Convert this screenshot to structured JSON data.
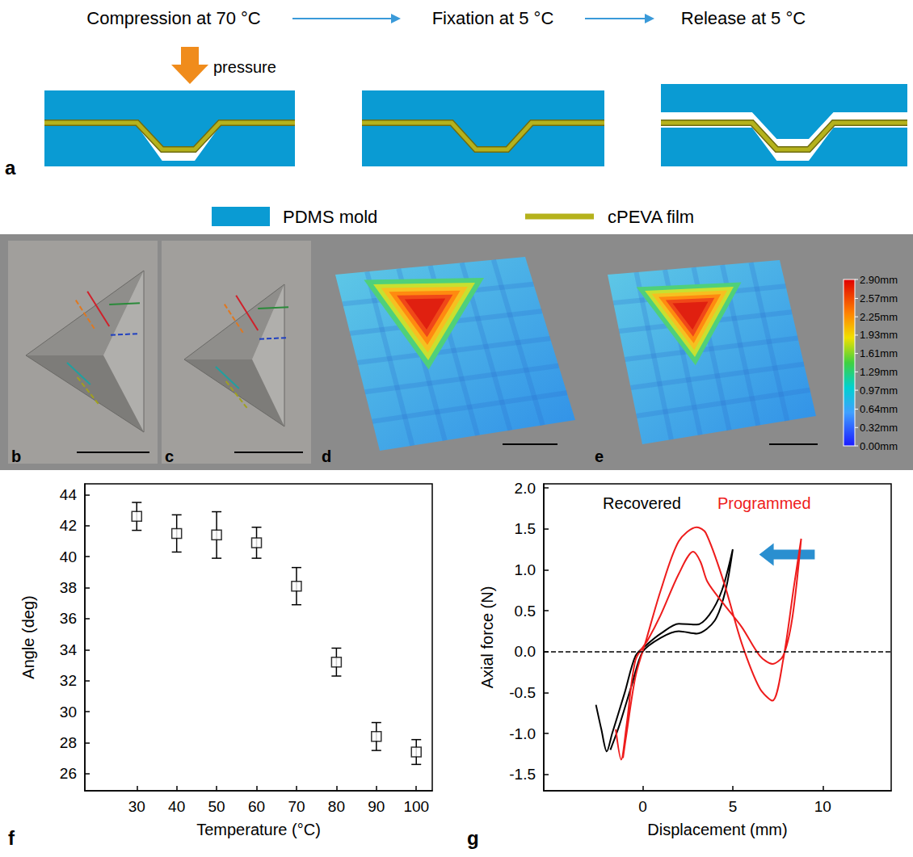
{
  "panel_a": {
    "letter": "a",
    "steps": [
      "Compression at 70 °C",
      "Fixation at 5 °C",
      "Release at 5 °C"
    ],
    "pressure_label": "pressure",
    "legend": [
      {
        "label": "PDMS mold",
        "color": "#0a9bd3"
      },
      {
        "label": "cPEVA film",
        "color": "#b5b21c"
      }
    ]
  },
  "images": [
    {
      "letter": "b",
      "kind": "photo"
    },
    {
      "letter": "c",
      "kind": "photo"
    },
    {
      "letter": "d",
      "kind": "height_map"
    },
    {
      "letter": "e",
      "kind": "height_map"
    }
  ],
  "colorbar": {
    "range": [
      0,
      2.9
    ],
    "ticks": [
      {
        "value": 2.9,
        "label": "2.90mm"
      },
      {
        "value": 2.57,
        "label": "2.57mm"
      },
      {
        "value": 2.25,
        "label": "2.25mm"
      },
      {
        "value": 1.93,
        "label": "1.93mm"
      },
      {
        "value": 1.61,
        "label": "1.61mm"
      },
      {
        "value": 1.29,
        "label": "1.29mm"
      },
      {
        "value": 0.97,
        "label": "0.97mm"
      },
      {
        "value": 0.64,
        "label": "0.64mm"
      },
      {
        "value": 0.32,
        "label": "0.32mm"
      },
      {
        "value": 0,
        "label": "0.00mm"
      }
    ]
  },
  "chart_data": [
    {
      "panel_label": "f",
      "type": "scatter",
      "x_label": "Temperature (°C)",
      "y_label": "Angle (deg)",
      "x": [
        30,
        40,
        50,
        60,
        70,
        80,
        90,
        100
      ],
      "values": [
        42.6,
        41.5,
        41.4,
        40.9,
        38.1,
        33.2,
        28.4,
        27.4
      ],
      "errors": [
        0.9,
        1.2,
        1.5,
        1.0,
        1.2,
        0.9,
        0.9,
        0.8
      ],
      "color": "#000000",
      "marker": "open_square",
      "xlim": [
        17,
        104
      ],
      "ylim": [
        24.9,
        44.7
      ],
      "xticks": [
        30,
        40,
        50,
        60,
        70,
        80,
        90,
        100
      ],
      "yticks": [
        26,
        28,
        30,
        32,
        34,
        36,
        38,
        40,
        42,
        44
      ],
      "grid": false
    },
    {
      "panel_label": "g",
      "type": "line",
      "x_label": "Displacement (mm)",
      "y_label": "Axial force (N)",
      "series": [
        {
          "name": "Recovered",
          "color": "#000000",
          "x": [
            -2.6,
            -2.3,
            -2.0,
            -1.7,
            -1.0,
            -0.4,
            0.2,
            1.0,
            2.0,
            3.0,
            3.7,
            4.4,
            5.0,
            4.6,
            4.0,
            3.0,
            2.0,
            1.0,
            0.0,
            -0.6,
            -1.3,
            -1.8
          ],
          "values": [
            -0.65,
            -0.95,
            -1.22,
            -1.0,
            -0.5,
            -0.05,
            0.08,
            0.22,
            0.34,
            0.33,
            0.45,
            0.75,
            1.25,
            0.75,
            0.38,
            0.22,
            0.25,
            0.17,
            0.0,
            -0.4,
            -0.9,
            -1.2
          ]
        },
        {
          "name": "Programmed",
          "color": "#ee1c1c",
          "x": [
            -1.5,
            -1.2,
            -0.9,
            -0.4,
            0.3,
            1.0,
            2.0,
            2.8,
            3.2,
            3.6,
            4.5,
            5.5,
            6.5,
            7.2,
            7.8,
            8.3,
            8.8,
            8.4,
            7.8,
            7.2,
            6.5,
            5.5,
            4.5,
            3.5,
            3.0,
            2.0,
            1.0,
            0.2,
            -0.4,
            -0.9,
            -1.1
          ],
          "values": [
            -0.95,
            -1.32,
            -0.9,
            -0.1,
            0.15,
            0.45,
            0.95,
            1.22,
            1.1,
            0.85,
            0.58,
            0.3,
            -0.05,
            -0.15,
            -0.05,
            0.4,
            1.38,
            0.8,
            -0.1,
            -0.6,
            -0.45,
            0.1,
            0.85,
            1.45,
            1.52,
            1.35,
            0.75,
            0.15,
            -0.3,
            -1.0,
            -1.3
          ]
        }
      ],
      "reference_line": {
        "y": 0,
        "line_style": "dashed",
        "color": "#000000"
      },
      "xlim": [
        -5.5,
        13.8
      ],
      "ylim": [
        -1.7,
        2.05
      ],
      "xticks": [
        0,
        5,
        10
      ],
      "yticks": [
        -1.5,
        {
          "value": -1,
          "label": "-1.0"
        },
        -0.5,
        {
          "value": 0,
          "label": "0.0"
        },
        0.5,
        {
          "value": 1,
          "label": "1.0"
        },
        1.5,
        {
          "value": 2,
          "label": "2.0"
        }
      ],
      "grid": false
    }
  ]
}
